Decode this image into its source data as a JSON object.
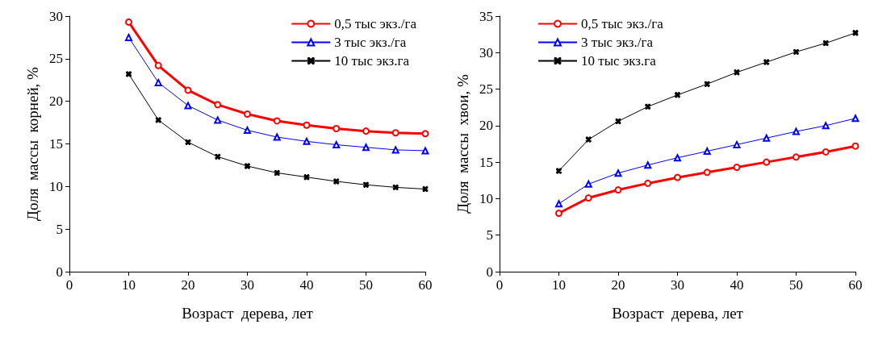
{
  "chart_data": [
    {
      "type": "line",
      "xlabel": "Возраст  дерева, лет",
      "ylabel": "Доля  массы  корней, %",
      "x": [
        10,
        15,
        20,
        25,
        30,
        35,
        40,
        45,
        50,
        55,
        60
      ],
      "xlim": [
        0,
        60
      ],
      "xticks": [
        0,
        10,
        20,
        30,
        40,
        50,
        60
      ],
      "ylim": [
        0,
        30
      ],
      "yticks": [
        0,
        5,
        10,
        15,
        20,
        25,
        30
      ],
      "grid": false,
      "legend": "top right",
      "series": [
        {
          "name": "0,5 тыс экз./га",
          "color": "#ff0000",
          "marker": "circle",
          "values": [
            29.3,
            24.2,
            21.3,
            19.6,
            18.5,
            17.7,
            17.2,
            16.8,
            16.5,
            16.3,
            16.2
          ]
        },
        {
          "name": "3 тыс экз./га",
          "color": "#0000ff",
          "marker": "triangle",
          "values": [
            27.5,
            22.2,
            19.5,
            17.8,
            16.6,
            15.8,
            15.3,
            14.9,
            14.6,
            14.3,
            14.2
          ]
        },
        {
          "name": "10 тыс экз.га",
          "color": "#000000",
          "marker": "cross",
          "values": [
            23.2,
            17.8,
            15.2,
            13.5,
            12.4,
            11.6,
            11.1,
            10.6,
            10.2,
            9.9,
            9.7
          ]
        }
      ]
    },
    {
      "type": "line",
      "xlabel": "Возраст  дерева, лет",
      "ylabel": "Доля  массы  хвои, %",
      "x": [
        10,
        15,
        20,
        25,
        30,
        35,
        40,
        45,
        50,
        55,
        60
      ],
      "xlim": [
        0,
        60
      ],
      "xticks": [
        0,
        10,
        20,
        30,
        40,
        50,
        60
      ],
      "ylim": [
        0,
        35
      ],
      "yticks": [
        0,
        5,
        10,
        15,
        20,
        25,
        30,
        35
      ],
      "grid": false,
      "legend": "top",
      "series": [
        {
          "name": "0,5 тыс экз./га",
          "color": "#ff0000",
          "marker": "circle",
          "values": [
            8.0,
            10.1,
            11.2,
            12.1,
            12.9,
            13.6,
            14.3,
            15.0,
            15.7,
            16.4,
            17.2
          ]
        },
        {
          "name": "3 тыс экз./га",
          "color": "#0000ff",
          "marker": "triangle",
          "values": [
            9.3,
            12.0,
            13.5,
            14.6,
            15.6,
            16.5,
            17.4,
            18.3,
            19.2,
            20.0,
            21.0
          ]
        },
        {
          "name": "10 тыс экз.га",
          "color": "#000000",
          "marker": "cross",
          "values": [
            13.8,
            18.1,
            20.6,
            22.6,
            24.2,
            25.7,
            27.3,
            28.7,
            30.1,
            31.3,
            32.7
          ]
        }
      ]
    }
  ]
}
